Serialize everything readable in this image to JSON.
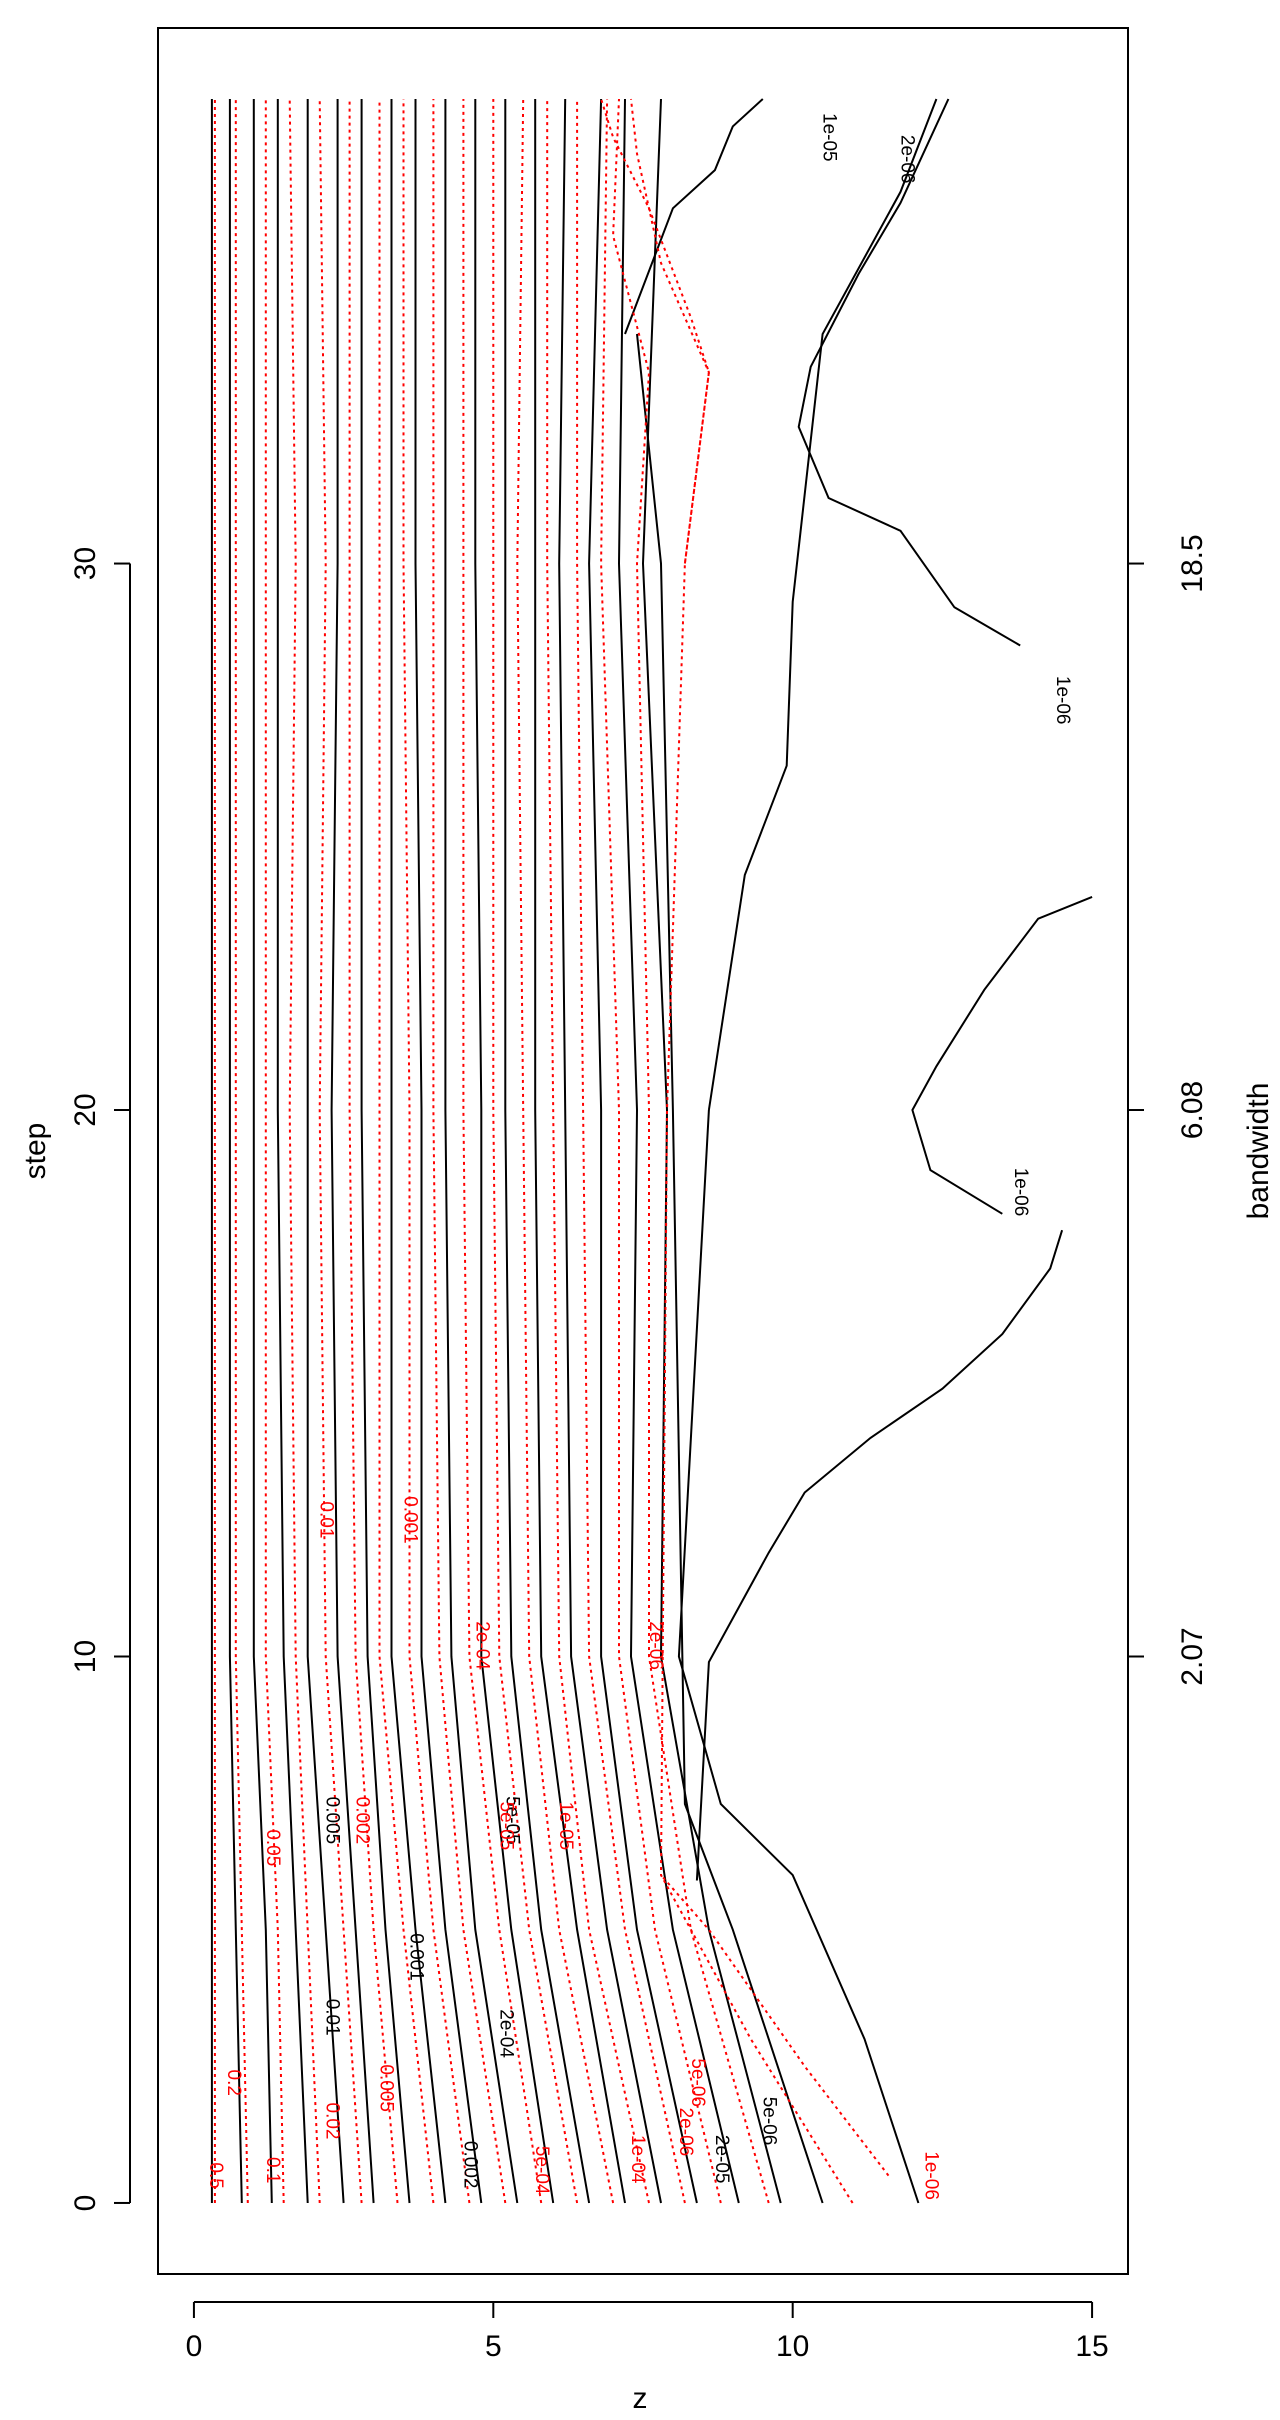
{
  "chart_data": {
    "type": "contour",
    "title": "",
    "xlabel": "z",
    "ylabel": "step",
    "y2label": "bandwidth",
    "xlim": [
      -0.6,
      15.6
    ],
    "ylim": [
      -1.3,
      39.8
    ],
    "x_ticks": [
      0,
      5,
      10,
      15
    ],
    "y_ticks": [
      0,
      10,
      20,
      30
    ],
    "y2_ticks": [
      {
        "step": 10,
        "label": "2.07"
      },
      {
        "step": 20,
        "label": "6.08"
      },
      {
        "step": 30,
        "label": "18.5"
      }
    ],
    "grid": false,
    "legend": "none",
    "colors": {
      "black_series": "#000000",
      "red_series": "#ff0000"
    },
    "series": [
      {
        "color": "#000000",
        "dash": "solid",
        "contours": [
          {
            "x": [
              0.3,
              0.3,
              0.3,
              0.3,
              0.3
            ],
            "y": [
              0,
              10,
              20,
              30,
              38.5
            ]
          },
          {
            "x": [
              0.8,
              0.7,
              0.6,
              0.6,
              0.6,
              0.6
            ],
            "y": [
              0,
              5,
              10,
              20,
              30,
              38.5
            ]
          },
          {
            "x": [
              1.3,
              1.2,
              1.0,
              1.0,
              1.0,
              1.0
            ],
            "y": [
              0,
              5,
              10,
              20,
              30,
              38.5
            ]
          },
          {
            "x": [
              1.9,
              1.7,
              1.5,
              1.4,
              1.4,
              1.4
            ],
            "y": [
              0,
              5,
              10,
              20,
              30,
              38.5
            ]
          },
          {
            "x": [
              2.5,
              2.2,
              1.9,
              1.9,
              1.9,
              1.9
            ],
            "y": [
              0,
              5,
              10,
              20,
              30,
              38.5
            ]
          },
          {
            "x": [
              3.0,
              2.7,
              2.4,
              2.3,
              2.4,
              2.4
            ],
            "y": [
              0,
              5,
              10,
              20,
              30,
              38.5
            ]
          },
          {
            "x": [
              3.6,
              3.2,
              2.9,
              2.8,
              2.8,
              2.8
            ],
            "y": [
              0,
              5,
              10,
              20,
              30,
              38.5
            ]
          },
          {
            "x": [
              4.2,
              3.7,
              3.3,
              3.3,
              3.3,
              3.3
            ],
            "y": [
              0,
              5,
              10,
              20,
              30,
              38.5
            ]
          },
          {
            "x": [
              4.8,
              4.2,
              3.8,
              3.8,
              3.7,
              3.7
            ],
            "y": [
              0,
              5,
              10,
              20,
              30,
              38.5
            ]
          },
          {
            "x": [
              5.4,
              4.7,
              4.3,
              4.2,
              4.2,
              4.2
            ],
            "y": [
              0,
              5,
              10,
              20,
              30,
              38.5
            ]
          },
          {
            "x": [
              6.0,
              5.3,
              4.8,
              4.8,
              4.7,
              4.7
            ],
            "y": [
              0,
              5,
              10,
              20,
              30,
              38.5
            ]
          },
          {
            "x": [
              6.6,
              5.8,
              5.3,
              5.2,
              5.2,
              5.2
            ],
            "y": [
              0,
              5,
              10,
              20,
              30,
              38.5
            ]
          },
          {
            "x": [
              7.2,
              6.4,
              5.8,
              5.7,
              5.7,
              5.7
            ],
            "y": [
              0,
              5,
              10,
              20,
              30,
              38.5
            ]
          },
          {
            "x": [
              7.8,
              6.9,
              6.3,
              6.2,
              6.1,
              6.2
            ],
            "y": [
              0,
              5,
              10,
              20,
              30,
              38.5
            ]
          },
          {
            "x": [
              8.4,
              7.4,
              6.8,
              6.8,
              6.6,
              6.8
            ],
            "y": [
              0,
              5,
              10,
              20,
              30,
              38.5
            ]
          },
          {
            "x": [
              9.1,
              8.0,
              7.3,
              7.4,
              7.1,
              7.2
            ],
            "y": [
              0,
              5,
              10,
              20,
              30,
              38.5
            ]
          },
          {
            "x": [
              9.8,
              8.6,
              7.8,
              7.9,
              7.5,
              7.8
            ],
            "y": [
              0,
              5,
              10,
              20,
              30,
              38.5
            ]
          },
          {
            "x": [
              10.5,
              9.0,
              8.2,
              8.0,
              7.8,
              7.4
            ],
            "y": [
              0,
              5,
              7.3,
              20,
              30,
              34.2
            ]
          },
          {
            "x": [
              12.1,
              11.2,
              10.0,
              8.8,
              8.1,
              8.6
            ],
            "y": [
              0,
              3,
              6,
              7.3,
              10,
              20
            ]
          },
          {
            "x": [
              7.2,
              8.0,
              8.7,
              9.0,
              9.5
            ],
            "y": [
              34.2,
              36.5,
              37.2,
              38.0,
              38.5
            ]
          },
          {
            "x": [
              8.6,
              9.2,
              9.9,
              10.0,
              10.5,
              11.8,
              12.4
            ],
            "y": [
              20,
              24.3,
              26.3,
              29.3,
              34.2,
              36.8,
              38.5
            ]
          },
          {
            "x": [
              13.8,
              12.7,
              11.8,
              10.6,
              10.1,
              10.3,
              11.1,
              11.8,
              12.6
            ],
            "y": [
              28.5,
              29.2,
              30.6,
              31.2,
              32.5,
              33.6,
              35.3,
              36.6,
              38.5
            ]
          },
          {
            "x": [
              14.5,
              14.3,
              13.5,
              12.5,
              11.3,
              10.2,
              9.6,
              8.6,
              8.4
            ],
            "y": [
              17.8,
              17.1,
              15.9,
              14.9,
              14.0,
              13.0,
              11.9,
              9.9,
              5.9
            ]
          },
          {
            "x": [
              15.0,
              14.1,
              13.2,
              12.4,
              12.0,
              12.3,
              13.5
            ],
            "y": [
              23.9,
              23.5,
              22.2,
              20.8,
              20.0,
              18.9,
              18.1
            ]
          }
        ]
      },
      {
        "color": "#ff0000",
        "dash": "dotted",
        "contours": [
          {
            "x": [
              0.35,
              0.35,
              0.35,
              0.35,
              0.35
            ],
            "y": [
              0,
              10,
              20,
              30,
              38.5
            ]
          },
          {
            "x": [
              0.9,
              0.8,
              0.7,
              0.7,
              0.7,
              0.7
            ],
            "y": [
              0,
              5,
              10,
              20,
              30,
              38.5
            ]
          },
          {
            "x": [
              1.5,
              1.4,
              1.2,
              1.2,
              1.2,
              1.2
            ],
            "y": [
              0,
              5,
              10,
              20,
              30,
              38.5
            ]
          },
          {
            "x": [
              2.1,
              1.9,
              1.7,
              1.6,
              1.7,
              1.6
            ],
            "y": [
              0,
              5,
              10,
              20,
              30,
              38.5
            ]
          },
          {
            "x": [
              2.8,
              2.5,
              2.2,
              2.1,
              2.2,
              2.1
            ],
            "y": [
              0,
              5,
              10,
              20,
              30,
              38.5
            ]
          },
          {
            "x": [
              3.4,
              3.0,
              2.7,
              2.6,
              2.6,
              2.6
            ],
            "y": [
              0,
              5,
              10,
              20,
              30,
              38.5
            ]
          },
          {
            "x": [
              4.0,
              3.5,
              3.1,
              3.1,
              3.1,
              3.1
            ],
            "y": [
              0,
              5,
              10,
              20,
              30,
              38.5
            ]
          },
          {
            "x": [
              4.6,
              4.0,
              3.6,
              3.6,
              3.5,
              3.5
            ],
            "y": [
              0,
              5,
              10,
              20,
              30,
              38.5
            ]
          },
          {
            "x": [
              5.2,
              4.5,
              4.1,
              4.0,
              4.0,
              4.0
            ],
            "y": [
              0,
              5,
              10,
              20,
              30,
              38.5
            ]
          },
          {
            "x": [
              5.8,
              5.1,
              4.6,
              4.5,
              4.5,
              4.5
            ],
            "y": [
              0,
              5,
              10,
              20,
              30,
              38.5
            ]
          },
          {
            "x": [
              6.4,
              5.6,
              5.1,
              5.0,
              5.0,
              5.0
            ],
            "y": [
              0,
              5,
              10,
              20,
              30,
              38.5
            ]
          },
          {
            "x": [
              7.0,
              6.1,
              5.6,
              5.5,
              5.4,
              5.5
            ],
            "y": [
              0,
              5,
              10,
              20,
              30,
              38.5
            ]
          },
          {
            "x": [
              7.6,
              6.6,
              6.1,
              6.0,
              5.9,
              5.9
            ],
            "y": [
              0,
              5,
              10,
              20,
              30,
              38.5
            ]
          },
          {
            "x": [
              8.2,
              7.2,
              6.6,
              6.5,
              6.4,
              6.4
            ],
            "y": [
              0,
              5,
              10,
              20,
              30,
              38.5
            ]
          },
          {
            "x": [
              8.8,
              7.7,
              7.1,
              7.1,
              6.8,
              6.9
            ],
            "y": [
              0,
              5,
              10,
              20,
              30,
              38.5
            ]
          },
          {
            "x": [
              9.6,
              8.3,
              7.6,
              7.6,
              7.4,
              7.6,
              7.0,
              7.1
            ],
            "y": [
              0,
              5,
              10,
              20,
              30,
              33.5,
              36,
              38.5
            ]
          },
          {
            "x": [
              11.0,
              9.3,
              7.8,
              7.9,
              8.2,
              8.6,
              7.8,
              7.4,
              7.3
            ],
            "y": [
              0,
              3,
              6,
              20,
              30,
              33.5,
              35.5,
              37.5,
              38.5
            ]
          },
          {
            "x": [
              11.6,
              10.2,
              8.6,
              7.8
            ],
            "y": [
              0.5,
              2.5,
              5,
              6
            ]
          },
          {
            "x": [
              8.2,
              8.6,
              8.3,
              7.6,
              7.0,
              6.8
            ],
            "y": [
              30,
              33.5,
              34.5,
              36.5,
              37.8,
              38.5
            ]
          }
        ]
      }
    ],
    "labels_black": [
      {
        "text": "0.005",
        "x": 2.3,
        "y": 7.0
      },
      {
        "text": "5e-05",
        "x": 5.3,
        "y": 7.0
      },
      {
        "text": "0.001",
        "x": 3.7,
        "y": 4.5
      },
      {
        "text": "0.01",
        "x": 2.3,
        "y": 3.4
      },
      {
        "text": "2e-04",
        "x": 5.2,
        "y": 3.1
      },
      {
        "text": "0.002",
        "x": 4.6,
        "y": 0.7
      },
      {
        "text": "5e-06",
        "x": 9.6,
        "y": 1.5
      },
      {
        "text": "2e-05",
        "x": 8.8,
        "y": 0.8
      },
      {
        "text": "1e-05",
        "x": 10.6,
        "y": 37.8
      },
      {
        "text": "2e-06",
        "x": 11.9,
        "y": 37.4
      },
      {
        "text": "1e-06",
        "x": 14.5,
        "y": 27.5
      },
      {
        "text": "1e-06",
        "x": 13.8,
        "y": 18.5
      }
    ],
    "labels_red": [
      {
        "text": "0.01",
        "x": 2.2,
        "y": 12.5
      },
      {
        "text": "0.001",
        "x": 3.6,
        "y": 12.5
      },
      {
        "text": "2e-04",
        "x": 4.8,
        "y": 10.2
      },
      {
        "text": "2e-06",
        "x": 7.7,
        "y": 10.2
      },
      {
        "text": "0.05",
        "x": 1.3,
        "y": 6.5
      },
      {
        "text": "0.002",
        "x": 2.8,
        "y": 7.0
      },
      {
        "text": "5e-05",
        "x": 5.2,
        "y": 6.9
      },
      {
        "text": "1e-05",
        "x": 6.2,
        "y": 6.9
      },
      {
        "text": "0.005",
        "x": 3.2,
        "y": 2.1
      },
      {
        "text": "0.02",
        "x": 2.3,
        "y": 1.5
      },
      {
        "text": "0.2",
        "x": 0.65,
        "y": 2.2
      },
      {
        "text": "0.5",
        "x": 0.35,
        "y": 0.5
      },
      {
        "text": "0.1",
        "x": 1.3,
        "y": 0.6
      },
      {
        "text": "5e-04",
        "x": 5.8,
        "y": 0.6
      },
      {
        "text": "1e-04",
        "x": 7.4,
        "y": 0.8
      },
      {
        "text": "2e-06",
        "x": 8.2,
        "y": 1.3
      },
      {
        "text": "5e-06",
        "x": 8.4,
        "y": 2.2
      },
      {
        "text": "1e-06",
        "x": 12.3,
        "y": 0.5
      }
    ]
  }
}
